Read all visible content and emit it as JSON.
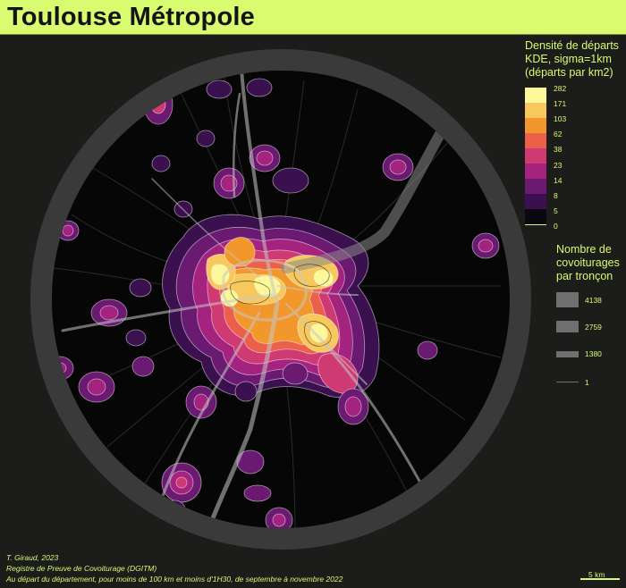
{
  "title": "Toulouse Métropole",
  "density_legend": {
    "title_lines": [
      "Densité de départs",
      "KDE, sigma=1km",
      "(départs par km2)"
    ],
    "breaks": [
      "282",
      "171",
      "103",
      "62",
      "38",
      "23",
      "14",
      "8",
      "5",
      "0"
    ],
    "colors": [
      "#fdf89a",
      "#f7c85d",
      "#f2972c",
      "#ec5f4b",
      "#cf3a72",
      "#a3237f",
      "#6b1a72",
      "#3b104f",
      "#0b0810"
    ]
  },
  "flow_legend": {
    "title_lines": [
      "Nombre de",
      "covoiturages",
      "par tronçon"
    ],
    "values": [
      "4138",
      "2759",
      "1380",
      "1"
    ]
  },
  "credits": {
    "lines": [
      "T. Giraud, 2023",
      "Registre de Preuve de Covoiturage (DGITM)",
      "Au départ du département, pour moins de 100 km et moins d'1H30, de septembre à novembre 2022"
    ]
  },
  "scale": {
    "label": "5 km"
  },
  "colors": {
    "background": "#1c1c1a",
    "accent": "#d8fb70",
    "ring": "#3a3a3a",
    "map_fill": "#060606"
  }
}
